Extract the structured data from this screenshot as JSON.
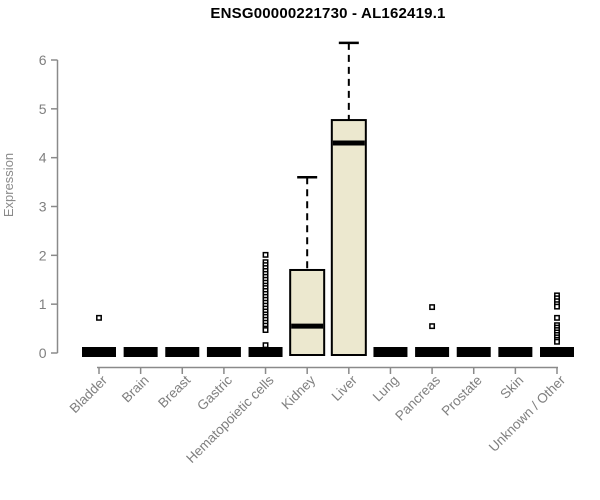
{
  "page": {
    "background": "#ffffff"
  },
  "chart_data": {
    "type": "boxplot",
    "title": "ENSG00000221730 - AL162419.1",
    "ylabel": "Expression",
    "xlabel": "",
    "ylim": [
      0,
      6.5
    ],
    "yticks": [
      0,
      1,
      2,
      3,
      4,
      5,
      6
    ],
    "grid": false,
    "legend": null,
    "categories": [
      "Bladder",
      "Brain",
      "Breast",
      "Gastric",
      "Hematopoietic cells",
      "Kidney",
      "Liver",
      "Lung",
      "Pancreas",
      "Prostate",
      "Skin",
      "Unknown / Other"
    ],
    "boxes": [
      {
        "category": "Bladder",
        "min": 0,
        "q1": 0,
        "median": 0,
        "q3": 0,
        "max": 0,
        "outliers": [
          0.72
        ]
      },
      {
        "category": "Brain",
        "min": 0,
        "q1": 0,
        "median": 0,
        "q3": 0,
        "max": 0,
        "outliers": []
      },
      {
        "category": "Breast",
        "min": 0,
        "q1": 0,
        "median": 0,
        "q3": 0,
        "max": 0,
        "outliers": []
      },
      {
        "category": "Gastric",
        "min": 0,
        "q1": 0,
        "median": 0,
        "q3": 0,
        "max": 0,
        "outliers": []
      },
      {
        "category": "Hematopoietic cells",
        "min": 0,
        "q1": 0,
        "median": 0,
        "q3": 0,
        "max": 0,
        "outliers": [
          2.01,
          1.86,
          1.8,
          1.74,
          1.68,
          1.62,
          1.56,
          1.5,
          1.44,
          1.38,
          1.33,
          1.27,
          1.21,
          1.15,
          1.09,
          1.03,
          0.97,
          0.91,
          0.85,
          0.79,
          0.74,
          0.68,
          0.62,
          0.56,
          0.5,
          0.47,
          0.16
        ]
      },
      {
        "category": "Kidney",
        "min": 0,
        "q1": 0,
        "median": 0.55,
        "q3": 1.7,
        "max": 3.6,
        "outliers": []
      },
      {
        "category": "Liver",
        "min": 0,
        "q1": 0,
        "median": 4.3,
        "q3": 4.77,
        "max": 6.35,
        "outliers": []
      },
      {
        "category": "Lung",
        "min": 0,
        "q1": 0,
        "median": 0,
        "q3": 0,
        "max": 0,
        "outliers": []
      },
      {
        "category": "Pancreas",
        "min": 0,
        "q1": 0,
        "median": 0,
        "q3": 0,
        "max": 0,
        "outliers": [
          0.94,
          0.55
        ]
      },
      {
        "category": "Prostate",
        "min": 0,
        "q1": 0,
        "median": 0,
        "q3": 0,
        "max": 0,
        "outliers": []
      },
      {
        "category": "Skin",
        "min": 0,
        "q1": 0,
        "median": 0,
        "q3": 0,
        "max": 0,
        "outliers": []
      },
      {
        "category": "Unknown / Other",
        "min": 0,
        "q1": 0,
        "median": 0,
        "q3": 0,
        "max": 0,
        "outliers": [
          1.18,
          1.12,
          1.06,
          1.0,
          0.95,
          0.72,
          0.57,
          0.52,
          0.47,
          0.42,
          0.37,
          0.32,
          0.27,
          0.23
        ]
      }
    ],
    "colors": {
      "box_fill": "#ece8cf",
      "box_border": "#000000",
      "median": "#000000",
      "whisker": "#000000",
      "outlier_border": "#000000",
      "outlier_fill": "#ffffff",
      "axis": "#8a8a8a",
      "tick_text": "#7f7f7f",
      "title_text": "#000000"
    }
  }
}
